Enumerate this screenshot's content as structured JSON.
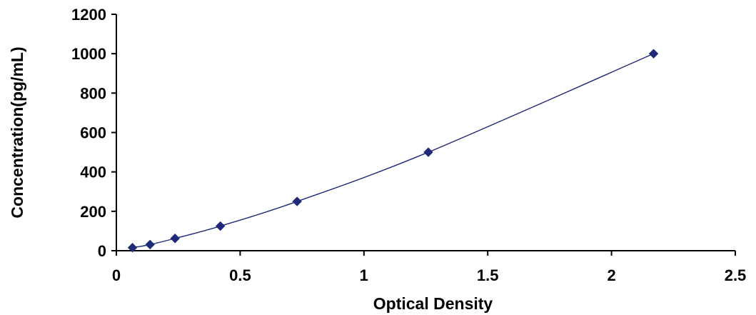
{
  "chart_data": {
    "type": "scatter",
    "title": "",
    "xlabel": "Optical Density",
    "ylabel": "Concentration(pg/mL)",
    "xlim": [
      0,
      2.5
    ],
    "ylim": [
      0,
      1200
    ],
    "xticks": [
      0,
      0.5,
      1,
      1.5,
      2,
      2.5
    ],
    "xtick_labels": [
      "0",
      "0.5",
      "1",
      "1.5",
      "2",
      "2.5"
    ],
    "yticks": [
      0,
      200,
      400,
      600,
      800,
      1000,
      1200
    ],
    "ytick_labels": [
      "0",
      "200",
      "400",
      "600",
      "800",
      "1000",
      "1200"
    ],
    "grid": false,
    "legend": "none",
    "trendline": "smooth curve through points",
    "series": [
      {
        "x": [
          0.065,
          0.136,
          0.237,
          0.42,
          0.73,
          1.26,
          2.17
        ],
        "y": [
          15.6,
          31.2,
          62.5,
          125,
          250,
          500,
          1000
        ],
        "color": "#1f2a78",
        "marker": "diamond"
      }
    ]
  }
}
